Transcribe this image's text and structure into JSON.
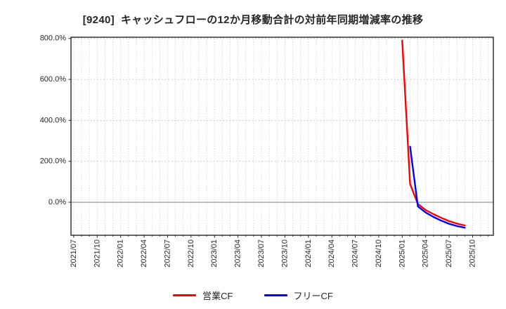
{
  "colors": {
    "background": "#ffffff",
    "title": "#262626",
    "tick": "#262626",
    "grid": "#c3c3c3",
    "zero_line": "#8c8c8c",
    "border": "#262626",
    "series_red": "#ff0000",
    "series_blue": "#0000ff"
  },
  "chart_data": {
    "type": "line",
    "title": "[9240]  キャッシュフローの12か月移動合計の対前年同期増減率の推移",
    "xlabel": "",
    "ylabel": "",
    "ylim": [
      -161,
      806
    ],
    "grid": true,
    "zero_line": true,
    "legend_position": "bottom-center",
    "x_axis": {
      "start_month": "2021/07",
      "months_total": 54,
      "left_margin_months": 0.35,
      "minor_gridline_every_months": 1,
      "major_tick_every_months": 3
    },
    "x_tick_labels": [
      "2021/07",
      "2021/10",
      "2022/01",
      "2022/04",
      "2022/07",
      "2022/10",
      "2023/01",
      "2023/04",
      "2023/07",
      "2023/10",
      "2024/01",
      "2024/04",
      "2024/07",
      "2024/10",
      "2025/01",
      "2025/04",
      "2025/07",
      "2025/10"
    ],
    "y_ticks": {
      "values": [
        800,
        600,
        400,
        200,
        0
      ],
      "labels": [
        "800.0%",
        "600.0%",
        "400.0%",
        "200.0%",
        "0.0%"
      ]
    },
    "series": [
      {
        "id": "operating-cf",
        "name": "営業CF",
        "color": "#ff0000",
        "points": [
          [
            "2025/01",
            790
          ],
          [
            "2025/02",
            90
          ],
          [
            "2025/03",
            -8
          ],
          [
            "2025/04",
            -38
          ],
          [
            "2025/05",
            -58
          ],
          [
            "2025/06",
            -76
          ],
          [
            "2025/07",
            -92
          ],
          [
            "2025/08",
            -104
          ],
          [
            "2025/09",
            -113
          ]
        ]
      },
      {
        "id": "free-cf",
        "name": "フリーCF",
        "color": "#0000ff",
        "points": [
          [
            "2025/02",
            272
          ],
          [
            "2025/03",
            -20
          ],
          [
            "2025/04",
            -50
          ],
          [
            "2025/05",
            -72
          ],
          [
            "2025/06",
            -90
          ],
          [
            "2025/07",
            -105
          ],
          [
            "2025/08",
            -116
          ],
          [
            "2025/09",
            -124
          ]
        ]
      }
    ]
  },
  "legend": {
    "items": [
      {
        "id": "operating-cf",
        "label": "営業CF",
        "color": "#ff0000"
      },
      {
        "id": "free-cf",
        "label": "フリーCF",
        "color": "#0000ff"
      }
    ]
  }
}
